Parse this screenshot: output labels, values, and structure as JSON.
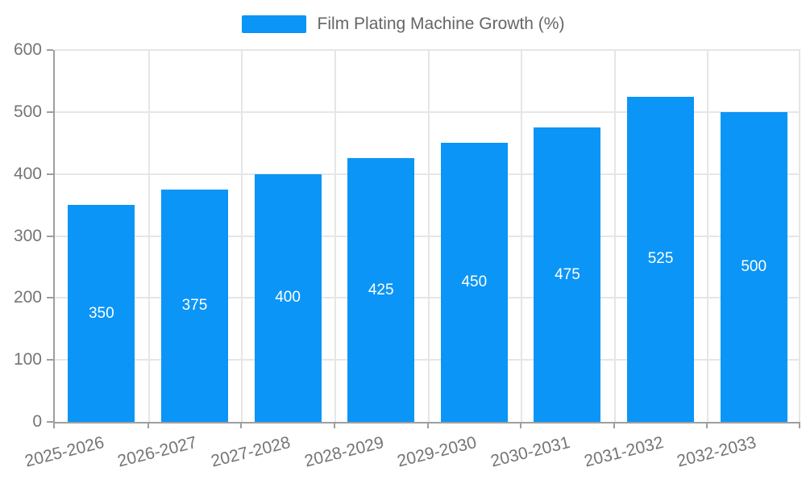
{
  "colors": {
    "bar": "#0B95F6",
    "axis_line": "#9E9E9E",
    "grid_line": "#E6E6E6",
    "axis_text": "#757575",
    "legend_text": "#666666",
    "data_label": "#FFFFFF"
  },
  "legend": {
    "label": "Film Plating Machine Growth (%)"
  },
  "chart_data": {
    "type": "bar",
    "title": "Film Plating Machine Growth (%)",
    "categories": [
      "2025-2026",
      "2026-2027",
      "2027-2028",
      "2028-2029",
      "2029-2030",
      "2030-2031",
      "2031-2032",
      "2032-2033"
    ],
    "values": [
      350,
      375,
      400,
      425,
      450,
      475,
      525,
      500
    ],
    "xlabel": "",
    "ylabel": "",
    "ylim": [
      0,
      600
    ],
    "yticks": [
      0,
      100,
      200,
      300,
      400,
      500,
      600
    ],
    "grid": true,
    "legend_position": "top-center",
    "data_labels_position": "inside-center",
    "x_label_rotation_deg": -14
  }
}
